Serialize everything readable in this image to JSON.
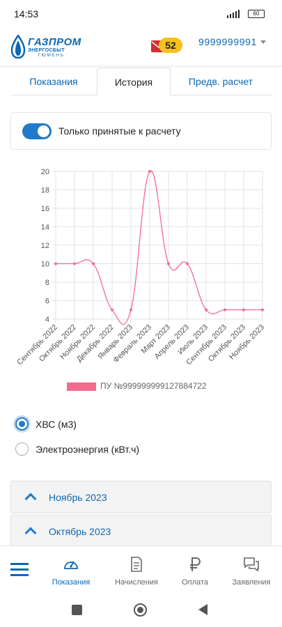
{
  "status_bar": {
    "time": "14:53",
    "battery": "60"
  },
  "header": {
    "logo": {
      "brand": "ГАЗПРОМ",
      "line2": "ЭНЕРГОСБЫТ",
      "line3": "ТЮМЕНЬ"
    },
    "notifications_count": "52",
    "account_number": "9999999991"
  },
  "tabs": [
    {
      "label": "Показания",
      "active": false
    },
    {
      "label": "История",
      "active": true
    },
    {
      "label": "Предв. расчет",
      "active": false
    }
  ],
  "filter": {
    "toggle_on": true,
    "label": "Только принятые к расчету"
  },
  "chart_data": {
    "type": "line",
    "categories": [
      "Сентябрь 2022",
      "Октябрь 2022",
      "Ноябрь 2022",
      "Декабрь 2022",
      "Январь 2023",
      "Февраль 2023",
      "Март 2023",
      "Апрель 2023",
      "Июль 2023",
      "Сентябрь 2023",
      "Октябрь 2023",
      "Ноябрь 2023"
    ],
    "series": [
      {
        "name": "ПУ №999999999127884722",
        "values": [
          10,
          10,
          10,
          5,
          5,
          20,
          10,
          10,
          5,
          5,
          5,
          5
        ],
        "color": "#f36a8c"
      }
    ],
    "ylim": [
      4,
      20
    ],
    "yticks": [
      4,
      6,
      8,
      10,
      12,
      14,
      16,
      18,
      20
    ],
    "grid": true,
    "legend_position": "bottom",
    "xlabel": "",
    "ylabel": ""
  },
  "legend_label": "ПУ №999999999127884722",
  "resource_options": [
    {
      "label": "ХВС (м3)",
      "checked": true
    },
    {
      "label": "Электроэнергия (кВт.ч)",
      "checked": false
    }
  ],
  "history_groups": [
    {
      "label": "Ноябрь 2023"
    },
    {
      "label": "Октябрь 2023"
    }
  ],
  "bottom_nav": [
    {
      "label": "Показания",
      "icon": "gauge-icon",
      "active": true
    },
    {
      "label": "Начисления",
      "icon": "document-icon",
      "active": false
    },
    {
      "label": "Оплата",
      "icon": "ruble-icon",
      "active": false
    },
    {
      "label": "Заявления",
      "icon": "chat-bubbles-icon",
      "active": false
    }
  ],
  "colors": {
    "accent": "#0a68b4",
    "toggle": "#1f7ac9",
    "badge": "#f7c11b",
    "series": "#f36a8c"
  }
}
